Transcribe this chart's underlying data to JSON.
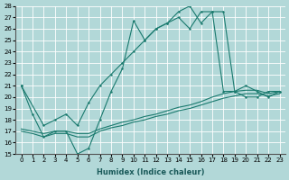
{
  "xlabel": "Humidex (Indice chaleur)",
  "xlim": [
    -0.5,
    23.5
  ],
  "ylim": [
    15,
    28
  ],
  "yticks": [
    15,
    16,
    17,
    18,
    19,
    20,
    21,
    22,
    23,
    24,
    25,
    26,
    27,
    28
  ],
  "xticks": [
    0,
    1,
    2,
    3,
    4,
    5,
    6,
    7,
    8,
    9,
    10,
    11,
    12,
    13,
    14,
    15,
    16,
    17,
    18,
    19,
    20,
    21,
    22,
    23
  ],
  "bg_color": "#b2d8d8",
  "grid_color": "#ffffff",
  "line_color": "#1a7a6e",
  "line1_x": [
    0,
    1,
    2,
    3,
    4,
    5,
    6,
    7,
    8,
    9,
    10,
    11,
    12,
    13,
    14,
    15,
    16,
    17,
    18,
    19,
    20,
    21,
    22,
    23
  ],
  "line1_y": [
    21.0,
    18.5,
    16.5,
    17.0,
    17.0,
    15.0,
    15.5,
    18.0,
    20.5,
    22.5,
    26.7,
    25.0,
    26.0,
    26.5,
    27.0,
    26.0,
    27.5,
    27.5,
    20.5,
    20.5,
    20.0,
    20.0,
    20.5,
    20.5
  ],
  "line2_x": [
    0,
    2,
    3,
    4,
    5,
    6,
    7,
    8,
    9,
    10,
    11,
    12,
    13,
    14,
    15,
    16,
    17,
    18,
    19,
    20,
    21,
    22,
    23
  ],
  "line2_y": [
    21.0,
    17.5,
    18.0,
    18.5,
    17.5,
    19.5,
    21.0,
    22.0,
    23.0,
    24.0,
    25.0,
    26.0,
    26.5,
    27.5,
    28.0,
    26.5,
    27.5,
    27.5,
    20.5,
    21.0,
    20.5,
    20.0,
    20.5
  ],
  "line3_x": [
    0,
    1,
    2,
    3,
    4,
    5,
    6,
    7,
    8,
    9,
    10,
    11,
    12,
    13,
    14,
    15,
    16,
    17,
    18,
    19,
    20,
    21,
    22,
    23
  ],
  "line3_y": [
    17.0,
    16.8,
    16.5,
    16.8,
    16.8,
    16.5,
    16.5,
    17.0,
    17.3,
    17.5,
    17.8,
    18.0,
    18.3,
    18.5,
    18.8,
    19.0,
    19.3,
    19.6,
    19.9,
    20.1,
    20.3,
    20.3,
    20.1,
    20.3
  ],
  "line4_x": [
    0,
    1,
    2,
    3,
    4,
    5,
    6,
    7,
    8,
    9,
    10,
    11,
    12,
    13,
    14,
    15,
    16,
    17,
    18,
    19,
    20,
    21,
    22,
    23
  ],
  "line4_y": [
    17.2,
    17.0,
    16.8,
    17.0,
    17.0,
    16.8,
    16.8,
    17.2,
    17.5,
    17.8,
    18.0,
    18.3,
    18.5,
    18.8,
    19.1,
    19.3,
    19.6,
    20.0,
    20.3,
    20.5,
    20.6,
    20.6,
    20.3,
    20.5
  ]
}
